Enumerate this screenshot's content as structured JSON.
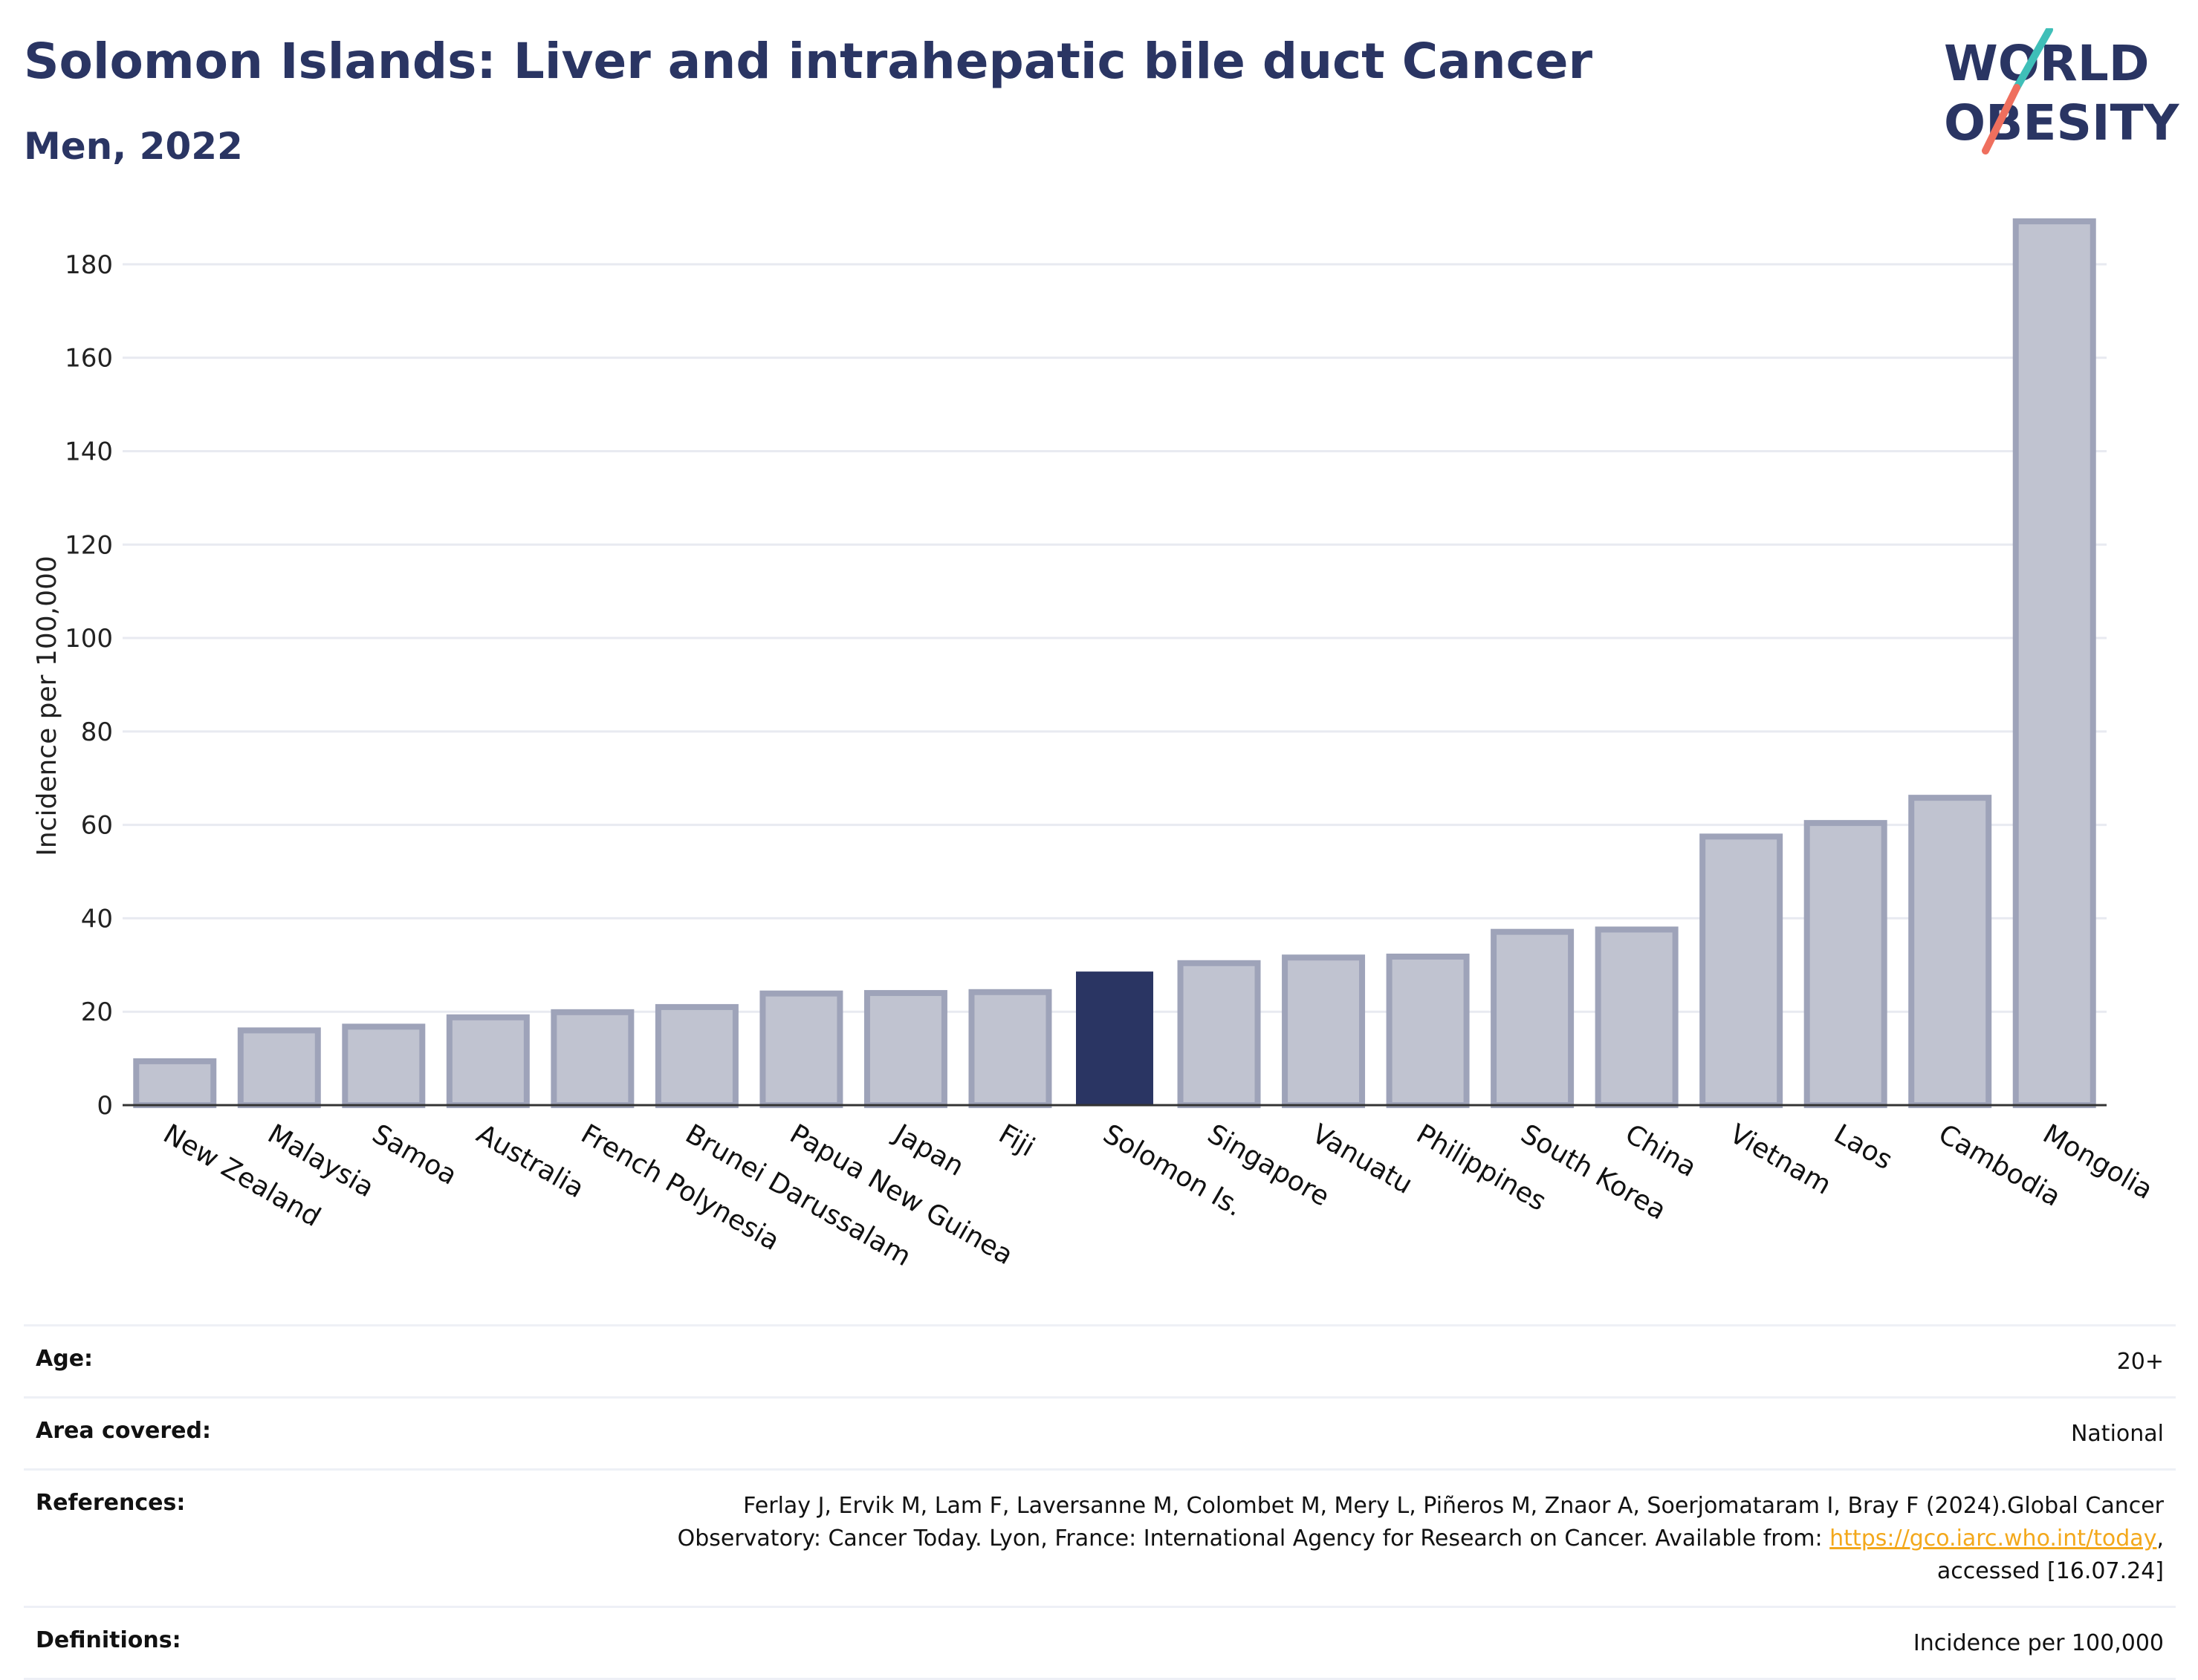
{
  "header": {
    "title": "Solomon Islands: Liver and intrahepatic bile duct Cancer",
    "subtitle": "Men, 2022"
  },
  "logo": {
    "line1": "WORLD",
    "line2": "OBESITY"
  },
  "colors": {
    "highlight": "#2a3563",
    "bar_fill": "#c0c3d0",
    "bar_stroke": "#9ea3b9",
    "grid": "#e8eaf1",
    "logo_teal": "#3fbfb8",
    "logo_coral": "#ef6f5e"
  },
  "chart_data": {
    "type": "bar",
    "ylabel": "Incidence per 100,000",
    "ylim": [
      0,
      190
    ],
    "yticks": [
      0,
      20,
      40,
      60,
      80,
      100,
      120,
      140,
      160,
      180
    ],
    "grid": true,
    "highlight": "Solomon Is.",
    "categories": [
      "New Zealand",
      "Malaysia",
      "Samoa",
      "Australia",
      "French Polynesia",
      "Brunei Darussalam",
      "Papua New Guinea",
      "Japan",
      "Fiji",
      "Solomon Is.",
      "Singapore",
      "Vanuatu",
      "Philippines",
      "South Korea",
      "China",
      "Vietnam",
      "Laos",
      "Cambodia",
      "Mongolia"
    ],
    "values": [
      9.4,
      16,
      16.8,
      18.8,
      19.9,
      21,
      23.9,
      24,
      24.2,
      28.6,
      30.4,
      31.6,
      31.8,
      37.1,
      37.6,
      57.5,
      60.4,
      65.8,
      189.2
    ]
  },
  "info": {
    "age": {
      "label": "Age:",
      "value": "20+"
    },
    "area": {
      "label": "Area covered:",
      "value": "National"
    },
    "references": {
      "label": "References:",
      "line1": "Ferlay J, Ervik M, Lam F, Laversanne M, Colombet M, Mery L, Piñeros M, Znaor A, Soerjomataram I, Bray F (2024).Global Cancer",
      "line2_pre": "Observatory: Cancer Today. Lyon, France: International Agency for Research on Cancer. Available from: ",
      "link": "https://gco.iarc.who.int/today",
      "line2_post": ",",
      "line3": "accessed [16.07.24]"
    },
    "definitions": {
      "label": "Definitions:",
      "value": "Incidence per 100,000"
    }
  }
}
